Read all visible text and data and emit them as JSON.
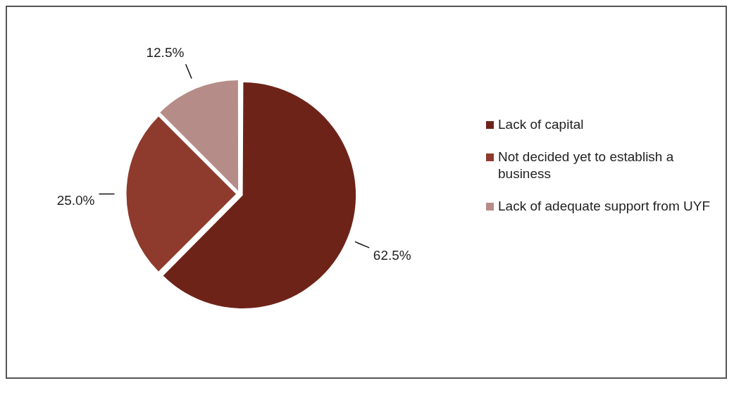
{
  "chart_data": {
    "type": "pie",
    "categories": [
      "Lack of capital",
      "Not decided yet to establish a business",
      "Lack of adequate support from UYF"
    ],
    "values": [
      62.5,
      25.0,
      12.5
    ],
    "colors": [
      "#6e2319",
      "#8e3a2c",
      "#b68c88"
    ],
    "value_labels": [
      "62.5%",
      "25.0%",
      "12.5%"
    ],
    "legend": "right"
  }
}
